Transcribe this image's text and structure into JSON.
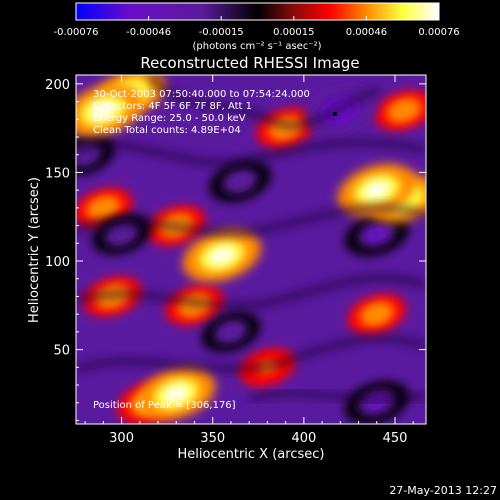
{
  "chart_data": {
    "type": "heatmap",
    "title": "Reconstructed RHESSI Image",
    "xlabel": "Heliocentric X (arcsec)",
    "ylabel": "Heliocentric Y (arcsec)",
    "xlim": [
      275,
      467
    ],
    "ylim": [
      8,
      205
    ],
    "x_ticks": [
      300,
      350,
      400,
      450
    ],
    "y_ticks": [
      50,
      100,
      150,
      200
    ],
    "colorbar": {
      "range": [
        -0.00076,
        0.00076
      ],
      "ticks": [
        "-0.00076",
        "-0.00046",
        "-0.00015",
        "0.00015",
        "0.00046",
        "0.00076"
      ],
      "units": "(photons cm⁻² s⁻¹ asec⁻²)",
      "colormap": [
        "#0000ff",
        "#6a0dc7",
        "#5a1a9a",
        "#000000",
        "#8a0a0a",
        "#ff0000",
        "#ff8a00",
        "#ffff40",
        "#ffffff"
      ]
    },
    "annotations": [
      "30-Oct-2003 07:50:40.000 to 07:54:24.000",
      "Detectors: 4F 5F 6F 7F 8F, Att 1",
      "Energy Range: 25.0 - 50.0 keV",
      "Clean  Total counts: 4.89E+04"
    ],
    "peak_label": "Position of Peak = [306,176]",
    "marker_point": [
      417,
      183
    ],
    "features": [
      {
        "x": 290,
        "y": 185,
        "value": 0.00076
      },
      {
        "x": 305,
        "y": 195,
        "value": 0.0006
      },
      {
        "x": 355,
        "y": 103,
        "value": 0.00076
      },
      {
        "x": 440,
        "y": 140,
        "value": 0.00076
      },
      {
        "x": 455,
        "y": 135,
        "value": 0.0006
      },
      {
        "x": 330,
        "y": 25,
        "value": 0.00076
      },
      {
        "x": 315,
        "y": 20,
        "value": 0.0005
      },
      {
        "x": 290,
        "y": 130,
        "value": 0.0004
      },
      {
        "x": 330,
        "y": 120,
        "value": 0.0004
      },
      {
        "x": 295,
        "y": 80,
        "value": 0.0004
      },
      {
        "x": 340,
        "y": 75,
        "value": 0.0004
      },
      {
        "x": 440,
        "y": 70,
        "value": 0.0004
      },
      {
        "x": 390,
        "y": 175,
        "value": 0.0004
      },
      {
        "x": 455,
        "y": 185,
        "value": 0.0004
      },
      {
        "x": 380,
        "y": 40,
        "value": 0.00035
      },
      {
        "x": 300,
        "y": 115,
        "value": -0.0004
      },
      {
        "x": 365,
        "y": 145,
        "value": -0.00045
      },
      {
        "x": 420,
        "y": 185,
        "value": -0.0006
      },
      {
        "x": 440,
        "y": 115,
        "value": -0.0005
      },
      {
        "x": 360,
        "y": 60,
        "value": -0.0004
      },
      {
        "x": 440,
        "y": 20,
        "value": -0.0005
      },
      {
        "x": 280,
        "y": 160,
        "value": -0.0004
      }
    ]
  },
  "footer": {
    "timestamp": "27-May-2013 12:27"
  }
}
